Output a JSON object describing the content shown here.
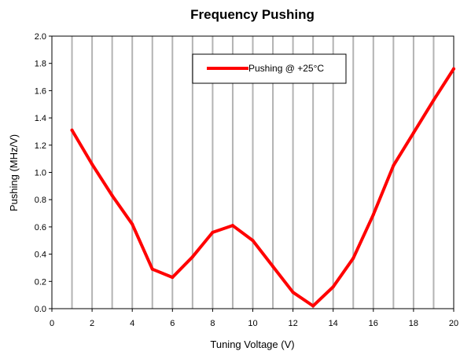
{
  "chart_data": {
    "type": "line",
    "title": "Frequency Pushing",
    "xlabel": "Tuning Voltage (V)",
    "ylabel": "Pushing (MHz/V)",
    "xlim": [
      0,
      20
    ],
    "ylim": [
      0,
      2.0
    ],
    "xticks": [
      "0",
      "2",
      "4",
      "6",
      "8",
      "10",
      "12",
      "14",
      "16",
      "18",
      "20"
    ],
    "yticks": [
      "0.0",
      "0.2",
      "0.4",
      "0.6",
      "0.8",
      "1.0",
      "1.2",
      "1.4",
      "1.6",
      "1.8",
      "2.0"
    ],
    "grid": "vertical",
    "legend_position": "top-center",
    "series": [
      {
        "name": "Pushing @ +25°C",
        "color": "#ff0000",
        "x": [
          1,
          2,
          3,
          4,
          5,
          6,
          7,
          8,
          9,
          10,
          11,
          12,
          13,
          14,
          15,
          16,
          17,
          18,
          19,
          20
        ],
        "y": [
          1.31,
          1.06,
          0.83,
          0.62,
          0.29,
          0.23,
          0.38,
          0.56,
          0.61,
          0.5,
          0.31,
          0.12,
          0.02,
          0.16,
          0.37,
          0.69,
          1.05,
          1.29,
          1.53,
          1.76
        ]
      }
    ]
  }
}
